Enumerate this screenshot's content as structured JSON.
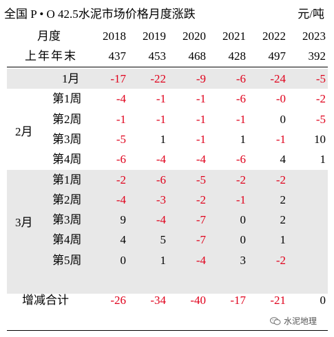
{
  "title": "全国 P • O 42.5水泥市场价格月度涨跌",
  "unit": "元/吨",
  "header": {
    "month_label": "月度",
    "years": [
      "2018",
      "2019",
      "2020",
      "2021",
      "2022",
      "2023"
    ],
    "base_label": "上年年末",
    "base_values": [
      "437",
      "453",
      "468",
      "428",
      "497",
      "392"
    ]
  },
  "rows": [
    {
      "group": "",
      "label": "1月",
      "values": [
        "-17",
        "-22",
        "-9",
        "-6",
        "-24",
        "-5"
      ],
      "neg": [
        true,
        true,
        true,
        true,
        true,
        true
      ],
      "shaded": true
    },
    {
      "group": "2月",
      "label": "第1周",
      "values": [
        "-4",
        "-1",
        "-1",
        "-6",
        "-0",
        "-2"
      ],
      "neg": [
        true,
        true,
        true,
        true,
        true,
        true
      ],
      "shaded": false
    },
    {
      "group": "2月",
      "label": "第2周",
      "values": [
        "-1",
        "-1",
        "-1",
        "-1",
        "0",
        "-5"
      ],
      "neg": [
        true,
        true,
        true,
        true,
        false,
        true
      ],
      "shaded": false
    },
    {
      "group": "2月",
      "label": "第3周",
      "values": [
        "-5",
        "1",
        "-1",
        "1",
        "-1",
        "10"
      ],
      "neg": [
        true,
        false,
        true,
        false,
        true,
        false
      ],
      "shaded": false
    },
    {
      "group": "2月",
      "label": "第4周",
      "values": [
        "-6",
        "-4",
        "-4",
        "-6",
        "4",
        "1"
      ],
      "neg": [
        true,
        true,
        true,
        true,
        false,
        false
      ],
      "shaded": false
    },
    {
      "group": "3月",
      "label": "第1周",
      "values": [
        "-2",
        "-6",
        "-5",
        "-2",
        "-2",
        ""
      ],
      "neg": [
        true,
        true,
        true,
        true,
        true,
        false
      ],
      "shaded": true
    },
    {
      "group": "3月",
      "label": "第2周",
      "values": [
        "-4",
        "-3",
        "-2",
        "-1",
        "2",
        ""
      ],
      "neg": [
        true,
        true,
        true,
        true,
        false,
        false
      ],
      "shaded": true
    },
    {
      "group": "3月",
      "label": "第3周",
      "values": [
        "9",
        "-4",
        "-7",
        "0",
        "2",
        ""
      ],
      "neg": [
        false,
        true,
        true,
        false,
        false,
        false
      ],
      "shaded": true
    },
    {
      "group": "3月",
      "label": "第4周",
      "values": [
        "4",
        "5",
        "-7",
        "0",
        "1",
        ""
      ],
      "neg": [
        false,
        false,
        true,
        false,
        false,
        false
      ],
      "shaded": true
    },
    {
      "group": "3月",
      "label": "第5周",
      "values": [
        "0",
        "1",
        "-4",
        "3",
        "-2",
        ""
      ],
      "neg": [
        false,
        false,
        true,
        false,
        true,
        false
      ],
      "shaded": true
    }
  ],
  "total": {
    "label": "增减合计",
    "values": [
      "-26",
      "-34",
      "-40",
      "-17",
      "-21",
      "0"
    ],
    "neg": [
      true,
      true,
      true,
      true,
      true,
      false
    ]
  },
  "month_groups": {
    "feb": "2月",
    "mar": "3月"
  },
  "watermark": "水泥地理",
  "colors": {
    "negative": "#e0001b",
    "positive": "#000000",
    "shade": "#e8e8e8"
  }
}
